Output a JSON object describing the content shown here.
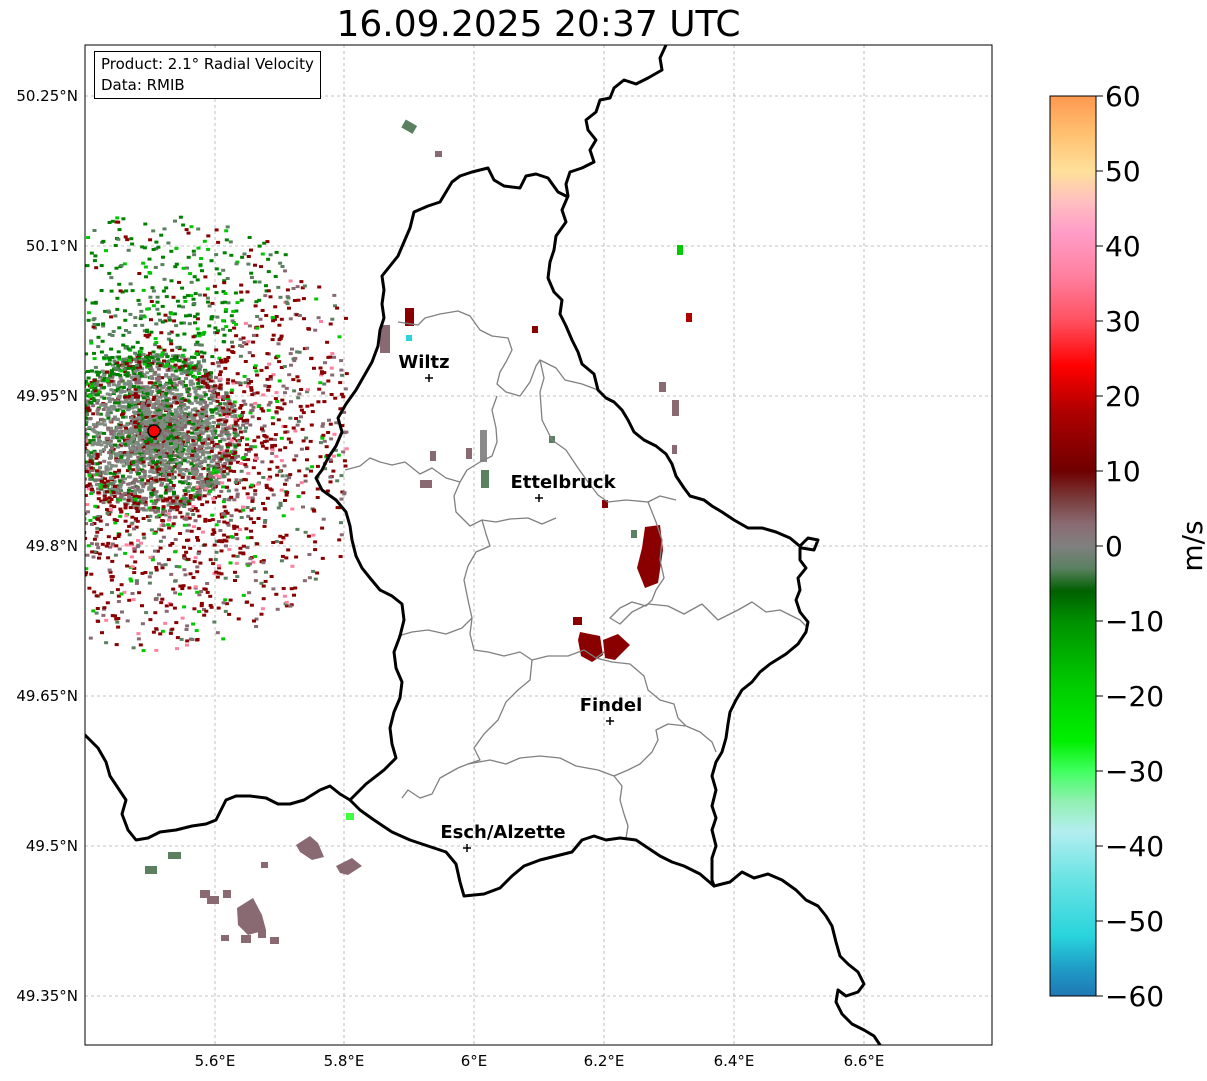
{
  "title": "16.09.2025 20:37 UTC",
  "info": {
    "product": "Product: 2.1° Radial Velocity",
    "data_source": "Data: RMIB"
  },
  "axes": {
    "lat_ticks": [
      "50.25°N",
      "50.1°N",
      "49.95°N",
      "49.8°N",
      "49.65°N",
      "49.5°N",
      "49.35°N"
    ],
    "lon_ticks": [
      "5.6°E",
      "5.8°E",
      "6°E",
      "6.2°E",
      "6.4°E",
      "6.6°E"
    ]
  },
  "cities": [
    {
      "name": "Wiltz",
      "lon": 5.93,
      "lat": 49.967
    },
    {
      "name": "Ettelbruck",
      "lon": 6.1,
      "lat": 49.847
    },
    {
      "name": "Findel",
      "lon": 6.21,
      "lat": 49.625
    },
    {
      "name": "Esch/Alzette",
      "lon": 5.99,
      "lat": 49.497
    }
  ],
  "radar": {
    "name": "radar-site",
    "lon": 5.505,
    "lat": 49.914
  },
  "colorbar": {
    "label": "m/s",
    "min": -60,
    "max": 60,
    "ticks": [
      "60",
      "50",
      "40",
      "30",
      "20",
      "10",
      "0",
      "−10",
      "−20",
      "−30",
      "−40",
      "−50",
      "−60"
    ],
    "stops": [
      {
        "v": -60,
        "c": "#1f77b4"
      },
      {
        "v": -56,
        "c": "#1fa0c8"
      },
      {
        "v": -52,
        "c": "#29d4dc"
      },
      {
        "v": -44,
        "c": "#6ee4e4"
      },
      {
        "v": -38,
        "c": "#b4eef0"
      },
      {
        "v": -34,
        "c": "#90f0b0"
      },
      {
        "v": -30,
        "c": "#40ff60"
      },
      {
        "v": -26,
        "c": "#00f000"
      },
      {
        "v": -18,
        "c": "#00c800"
      },
      {
        "v": -10,
        "c": "#009000"
      },
      {
        "v": -6,
        "c": "#006000"
      },
      {
        "v": -3,
        "c": "#5a8060"
      },
      {
        "v": 0,
        "c": "#808080"
      },
      {
        "v": 3,
        "c": "#8a6a72"
      },
      {
        "v": 6,
        "c": "#7a4040"
      },
      {
        "v": 10,
        "c": "#700000"
      },
      {
        "v": 18,
        "c": "#b00000"
      },
      {
        "v": 24,
        "c": "#ff0000"
      },
      {
        "v": 30,
        "c": "#ff5060"
      },
      {
        "v": 36,
        "c": "#ff80a0"
      },
      {
        "v": 42,
        "c": "#ff9ec8"
      },
      {
        "v": 46,
        "c": "#ffc0c0"
      },
      {
        "v": 50,
        "c": "#ffe09a"
      },
      {
        "v": 55,
        "c": "#ffc070"
      },
      {
        "v": 60,
        "c": "#ff9850"
      }
    ]
  },
  "colors": {
    "border": "#000000",
    "canton": "#808080",
    "grid": "#b0b0b0",
    "radar_marker": "#ff0000"
  }
}
